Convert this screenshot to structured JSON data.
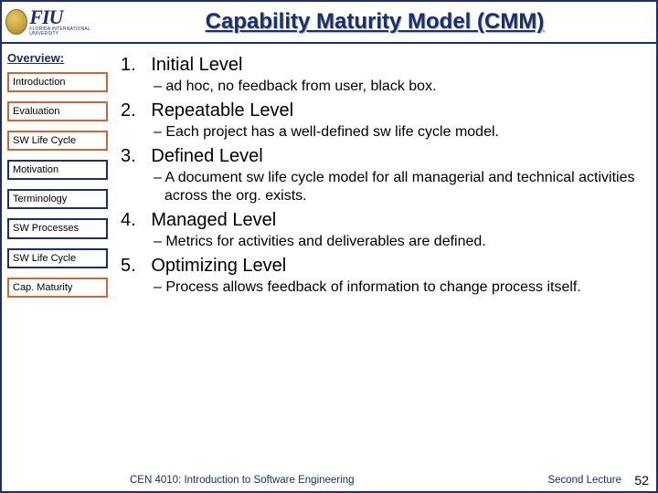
{
  "colors": {
    "border": "#1a2f6b",
    "nav_primary_border": "#d06636",
    "nav_secondary_border": "#1a2f6b",
    "title_text": "#1a2f6b",
    "footer_text": "#1a2f6b",
    "background": "#ffffff"
  },
  "logo": {
    "abbrev": "FIU",
    "subtitle": "FLORIDA INTERNATIONAL UNIVERSITY"
  },
  "title": "Capability Maturity Model (CMM)",
  "sidebar": {
    "heading": "Overview:",
    "items": [
      {
        "label": "Introduction",
        "style": "primary"
      },
      {
        "label": "Evaluation",
        "style": "primary"
      },
      {
        "label": "SW Life Cycle",
        "style": "primary"
      },
      {
        "label": "Motivation",
        "style": "secondary"
      },
      {
        "label": "Terminology",
        "style": "secondary"
      },
      {
        "label": "SW Processes",
        "style": "secondary"
      },
      {
        "label": "SW Life Cycle",
        "style": "secondary"
      },
      {
        "label": "Cap. Maturity",
        "style": "primary"
      }
    ]
  },
  "levels": [
    {
      "num": "1.",
      "title": "Initial Level",
      "sub": "ad hoc, no feedback from user, black box."
    },
    {
      "num": "2.",
      "title": "Repeatable Level",
      "sub": "Each project has a well-defined sw life cycle model."
    },
    {
      "num": "3.",
      "title": "Defined Level",
      "sub": "A document sw life cycle model for all managerial and technical activities across the org. exists."
    },
    {
      "num": "4.",
      "title": "Managed Level",
      "sub": "Metrics for activities and deliverables are defined."
    },
    {
      "num": "5.",
      "title": "Optimizing Level",
      "sub": "Process allows feedback of information to change process itself."
    }
  ],
  "footer": {
    "course": "CEN 4010: Introduction to Software Engineering",
    "lecture": "Second Lecture",
    "page": "52"
  }
}
